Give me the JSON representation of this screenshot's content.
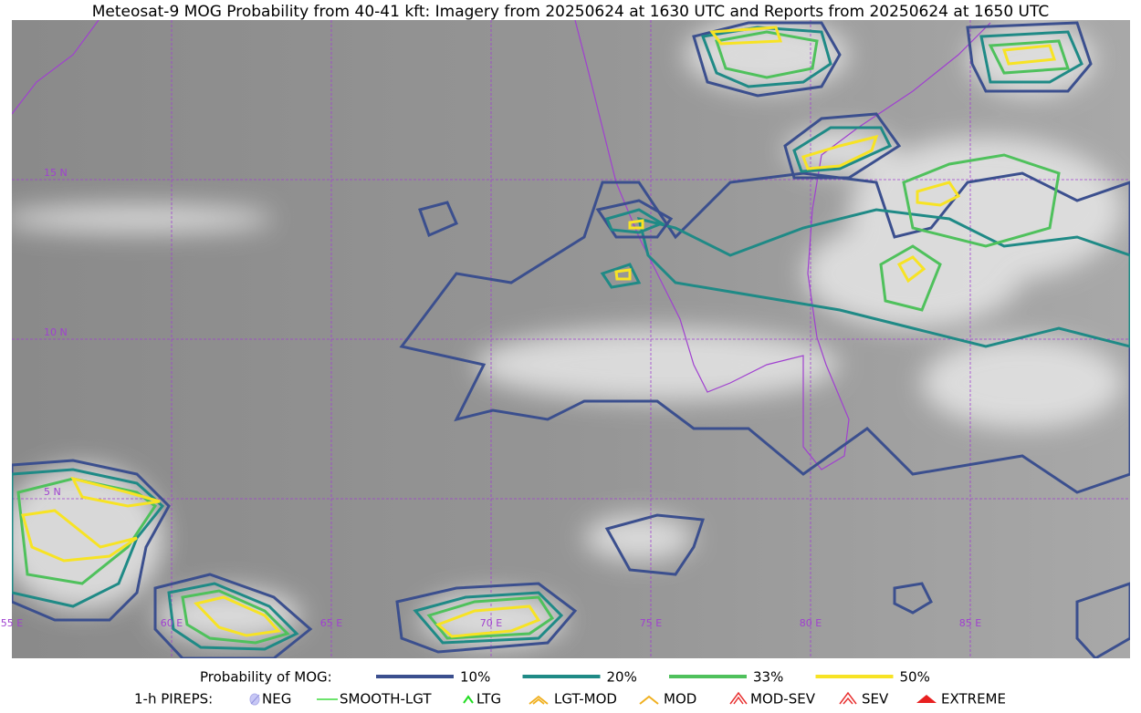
{
  "title": "Meteosat-9 MOG Probability from 40-41 kft: Imagery from 20250624 at 1630 UTC and Reports from 20250624 at 1650 UTC",
  "map": {
    "lat_labels": [
      "15 N",
      "10 N",
      "5 N"
    ],
    "lon_labels": [
      "55 E",
      "60 E",
      "65 E",
      "70 E",
      "75 E",
      "80 E",
      "85 E"
    ]
  },
  "legend": {
    "probability": {
      "label": "Probability of MOG:",
      "items": [
        {
          "label": "10%",
          "color": "#3b4f8e"
        },
        {
          "label": "20%",
          "color": "#1f8a86"
        },
        {
          "label": "33%",
          "color": "#4fc15c"
        },
        {
          "label": "50%",
          "color": "#f7e324"
        }
      ]
    },
    "pireps": {
      "label": "1-h PIREPS:",
      "items": [
        "NEG",
        "SMOOTH-LGT",
        "LTG",
        "LGT-MOD",
        "MOD",
        "MOD-SEV",
        "SEV",
        "EXTREME"
      ]
    }
  }
}
